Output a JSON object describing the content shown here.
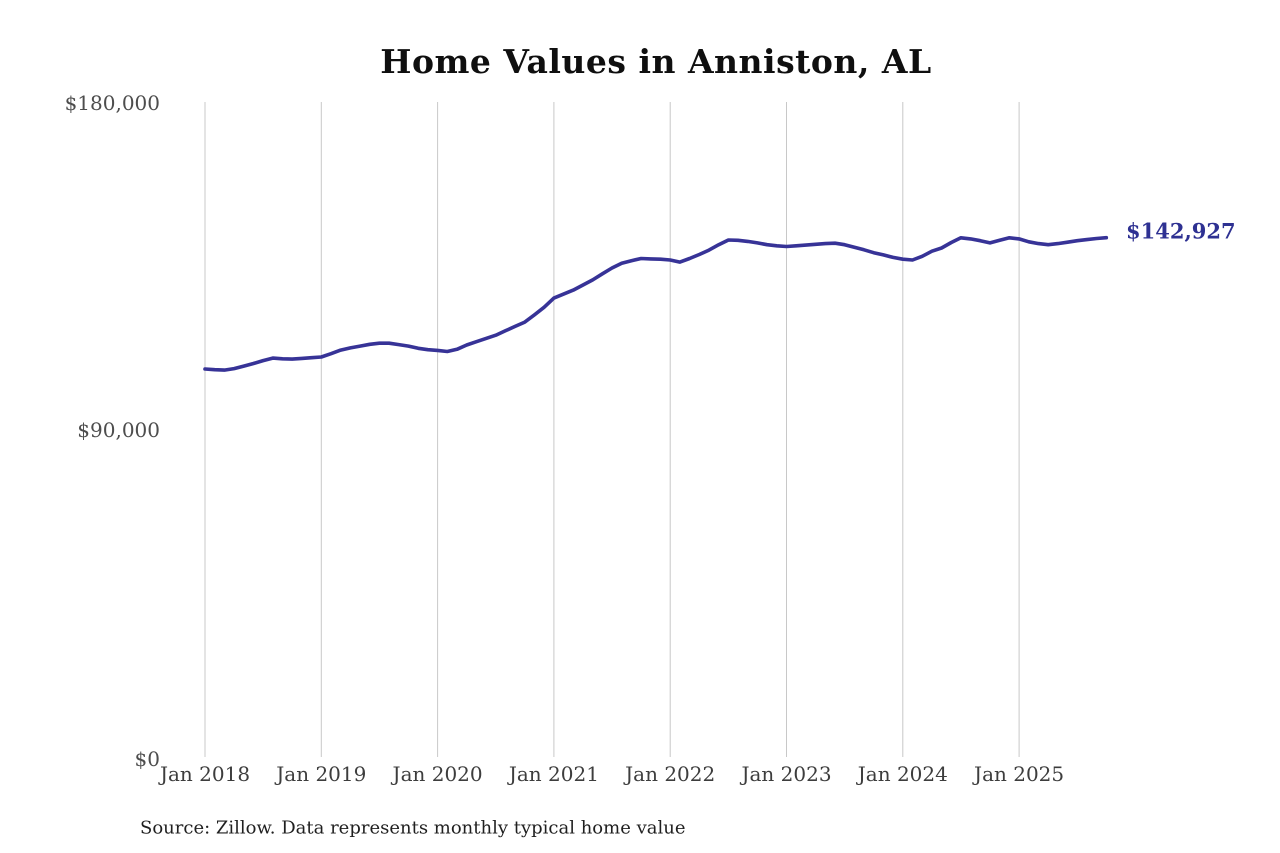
{
  "title": "Home Values in Anniston, AL",
  "end_label": "$142,927",
  "source_note": "Source: Zillow. Data represents monthly typical home value",
  "colors": {
    "line": "#373397",
    "end_label": "#2e3192",
    "gridline": "#c8c8c8",
    "title_text": "#0f0f0f",
    "y_tick_text": "#4d4d4d",
    "x_tick_text": "#3d3d3d",
    "source_text": "#1f1f1f",
    "background": "#ffffff"
  },
  "y_axis": {
    "labels": [
      "$180,000",
      "$90,000",
      "$0"
    ],
    "values": [
      180000,
      90000,
      0
    ]
  },
  "x_axis": {
    "labels": [
      "Jan 2018",
      "Jan 2019",
      "Jan 2020",
      "Jan 2021",
      "Jan 2022",
      "Jan 2023",
      "Jan 2024",
      "Jan 2025"
    ]
  },
  "chart_data": {
    "type": "line",
    "title": "Home Values in Anniston, AL",
    "xlabel": "",
    "ylabel": "",
    "ylim": [
      0,
      180000
    ],
    "y_ticks": [
      0,
      90000,
      180000
    ],
    "x_tick_labels": [
      "Jan 2018",
      "Jan 2019",
      "Jan 2020",
      "Jan 2021",
      "Jan 2022",
      "Jan 2023",
      "Jan 2024",
      "Jan 2025"
    ],
    "grid": "vertical-only",
    "legend": "none",
    "series_name": "Typical home value (monthly, USD)",
    "x_start": "2018-01",
    "x_frequency": "monthly",
    "last_value_annotation": "$142,927",
    "values": [
      106800,
      106600,
      106500,
      106900,
      107600,
      108300,
      109100,
      109800,
      109600,
      109500,
      109700,
      109900,
      110100,
      111000,
      112000,
      112600,
      113100,
      113600,
      113900,
      113900,
      113500,
      113100,
      112500,
      112100,
      111900,
      111600,
      112200,
      113400,
      114300,
      115200,
      116100,
      117300,
      118500,
      119700,
      121700,
      123800,
      126300,
      127400,
      128500,
      129900,
      131300,
      133000,
      134600,
      135900,
      136600,
      137200,
      137100,
      137000,
      136800,
      136200,
      137200,
      138300,
      139500,
      141000,
      142300,
      142200,
      141900,
      141500,
      141000,
      140700,
      140500,
      140700,
      140900,
      141100,
      141300,
      141400,
      141000,
      140300,
      139600,
      138800,
      138200,
      137500,
      137000,
      136800,
      137800,
      139200,
      140100,
      141600,
      142900,
      142600,
      142100,
      141500,
      142200,
      142900,
      142600,
      141800,
      141300,
      141000,
      141300,
      141700,
      142100,
      142400,
      142700,
      142927
    ]
  }
}
